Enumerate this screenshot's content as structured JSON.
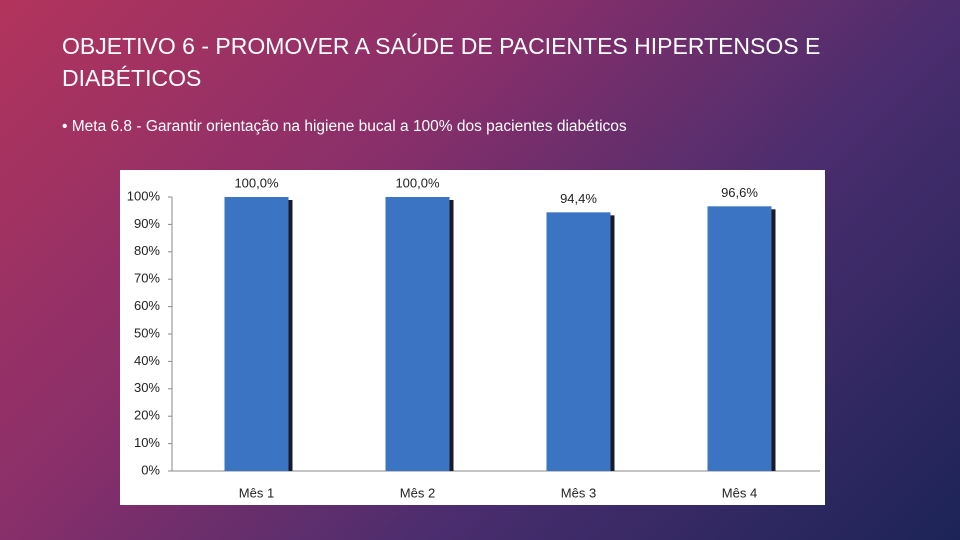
{
  "slide": {
    "title": "OBJETIVO 6 - PROMOVER A SAÚDE DE PACIENTES HIPERTENSOS E DIABÉTICOS",
    "bullet": "Meta 6.8 - Garantir orientação na higiene bucal a 100% dos pacientes diabéticos"
  },
  "chart_data": {
    "type": "bar",
    "categories": [
      "Mês 1",
      "Mês 2",
      "Mês 3",
      "Mês 4"
    ],
    "values": [
      100,
      100,
      94.4,
      96.6
    ],
    "value_labels": [
      "100,0%",
      "100,0%",
      "94,4%",
      "96,6%"
    ],
    "color": "#3a74c2",
    "ylim": [
      0,
      100
    ],
    "yticks": [
      {
        "value": 0,
        "label": "0%"
      },
      {
        "value": 10,
        "label": "10%"
      },
      {
        "value": 20,
        "label": "20%"
      },
      {
        "value": 30,
        "label": "30%"
      },
      {
        "value": 40,
        "label": "40%"
      },
      {
        "value": 50,
        "label": "50%"
      },
      {
        "value": 60,
        "label": "60%"
      },
      {
        "value": 70,
        "label": "70%"
      },
      {
        "value": 80,
        "label": "80%"
      },
      {
        "value": 90,
        "label": "90%"
      },
      {
        "value": 100,
        "label": "100%"
      }
    ],
    "grid": false
  }
}
